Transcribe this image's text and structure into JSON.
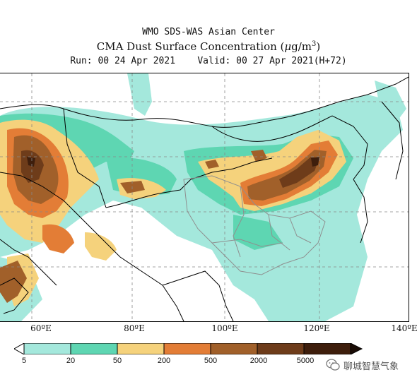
{
  "header": {
    "line1": "WMO SDS-WAS Asian Center",
    "line2_prefix": "CMA Dust Surface Concentration (",
    "line2_unit_mu": "μ",
    "line2_unit_rest": "g/m",
    "line2_unit_sup": "3",
    "line2_suffix": ")",
    "line3": "Run: 00 24 Apr 2021    Valid: 00 27 Apr 2021(H+72)"
  },
  "axis": {
    "lon_labels": [
      "60ºE",
      "80ºE",
      "100ºE",
      "120ºE",
      "140ºE"
    ]
  },
  "legend": {
    "levels": [
      "5",
      "20",
      "50",
      "200",
      "500",
      "2000",
      "5000"
    ],
    "colors": [
      "#a4e8dc",
      "#5ed6b2",
      "#f5d27c",
      "#e37d36",
      "#a1602a",
      "#6e3c1a",
      "#3e1e0c"
    ]
  },
  "watermark": {
    "text": "聊城智慧气象",
    "icon": "wechat-icon"
  }
}
